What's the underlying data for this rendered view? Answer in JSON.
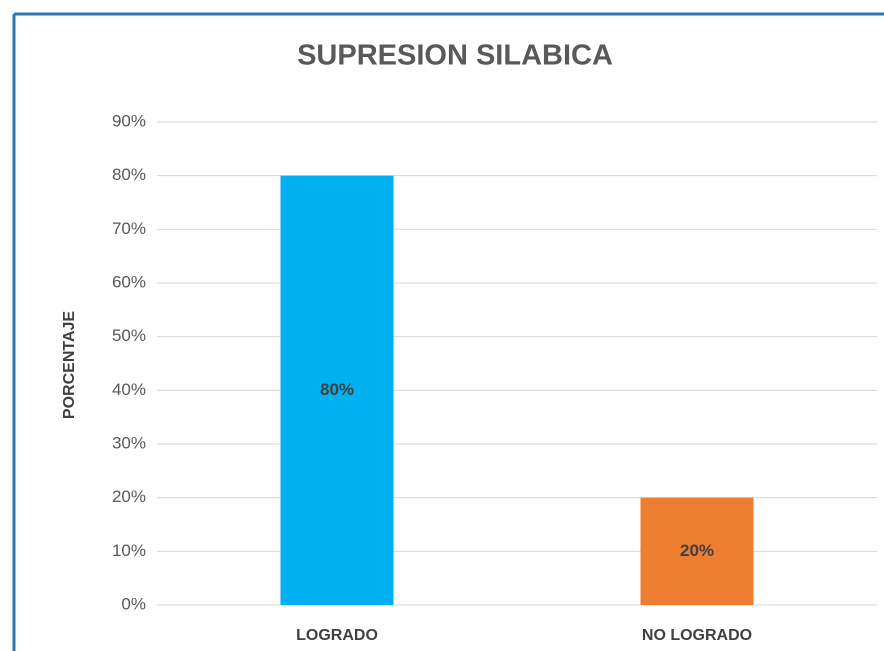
{
  "chart_data": {
    "type": "bar",
    "title": "SUPRESION SILABICA",
    "y_label": "PORCENTAJE",
    "categories": [
      "LOGRADO",
      "NO LOGRADO"
    ],
    "values": [
      80,
      20
    ],
    "value_labels": [
      "80%",
      "20%"
    ],
    "colors": [
      "#00b0f0",
      "#ed7d31"
    ],
    "ylim": [
      0,
      90
    ],
    "yticks": [
      {
        "value": 0,
        "label": "0%"
      },
      {
        "value": 10,
        "label": "10%"
      },
      {
        "value": 20,
        "label": "20%"
      },
      {
        "value": 30,
        "label": "30%"
      },
      {
        "value": 40,
        "label": "40%"
      },
      {
        "value": 50,
        "label": "50%"
      },
      {
        "value": 60,
        "label": "60%"
      },
      {
        "value": 70,
        "label": "70%"
      },
      {
        "value": 80,
        "label": "80%"
      },
      {
        "value": 90,
        "label": "90%"
      }
    ],
    "grid": true
  }
}
